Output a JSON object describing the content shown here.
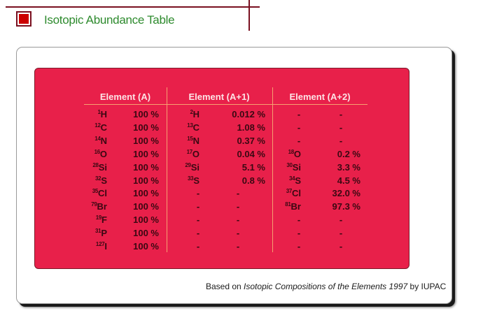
{
  "header": {
    "title": "Isotopic Abundance Table",
    "icon": "red-square-icon",
    "accent_color": "#cc0000",
    "title_color": "#2e8b2e"
  },
  "table": {
    "background_color": "#e8204a",
    "groups": [
      {
        "label": "Element (A)"
      },
      {
        "label": "Element (A+1)"
      },
      {
        "label": "Element (A+2)"
      }
    ],
    "rows": [
      {
        "a_mass": "1",
        "a_sym": "H",
        "a_val": "100 %",
        "a1_mass": "2",
        "a1_sym": "H",
        "a1_val": "0.012 %",
        "a2_mass": "",
        "a2_sym": "-",
        "a2_val": "-"
      },
      {
        "a_mass": "12",
        "a_sym": "C",
        "a_val": "100 %",
        "a1_mass": "13",
        "a1_sym": "C",
        "a1_val": "1.08 %",
        "a2_mass": "",
        "a2_sym": "-",
        "a2_val": "-"
      },
      {
        "a_mass": "14",
        "a_sym": "N",
        "a_val": "100 %",
        "a1_mass": "15",
        "a1_sym": "N",
        "a1_val": "0.37 %",
        "a2_mass": "",
        "a2_sym": "-",
        "a2_val": "-"
      },
      {
        "a_mass": "16",
        "a_sym": "O",
        "a_val": "100 %",
        "a1_mass": "17",
        "a1_sym": "O",
        "a1_val": "0.04 %",
        "a2_mass": "18",
        "a2_sym": "O",
        "a2_val": "0.2 %"
      },
      {
        "a_mass": "28",
        "a_sym": "Si",
        "a_val": "100 %",
        "a1_mass": "29",
        "a1_sym": "Si",
        "a1_val": "5.1 %",
        "a2_mass": "30",
        "a2_sym": "Si",
        "a2_val": "3.3 %"
      },
      {
        "a_mass": "32",
        "a_sym": "S",
        "a_val": "100 %",
        "a1_mass": "33",
        "a1_sym": "S",
        "a1_val": "0.8 %",
        "a2_mass": "34",
        "a2_sym": "S",
        "a2_val": "4.5 %"
      },
      {
        "a_mass": "35",
        "a_sym": "Cl",
        "a_val": "100 %",
        "a1_mass": "",
        "a1_sym": "-",
        "a1_val": "-",
        "a2_mass": "37",
        "a2_sym": "Cl",
        "a2_val": "32.0 %"
      },
      {
        "a_mass": "79",
        "a_sym": "Br",
        "a_val": "100 %",
        "a1_mass": "",
        "a1_sym": "-",
        "a1_val": "-",
        "a2_mass": "81",
        "a2_sym": "Br",
        "a2_val": "97.3 %"
      },
      {
        "a_mass": "19",
        "a_sym": "F",
        "a_val": "100 %",
        "a1_mass": "",
        "a1_sym": "-",
        "a1_val": "-",
        "a2_mass": "",
        "a2_sym": "-",
        "a2_val": "-"
      },
      {
        "a_mass": "31",
        "a_sym": "P",
        "a_val": "100 %",
        "a1_mass": "",
        "a1_sym": "-",
        "a1_val": "-",
        "a2_mass": "",
        "a2_sym": "-",
        "a2_val": "-"
      },
      {
        "a_mass": "127",
        "a_sym": "I",
        "a_val": "100 %",
        "a1_mass": "",
        "a1_sym": "-",
        "a1_val": "-",
        "a2_mass": "",
        "a2_sym": "-",
        "a2_val": "-"
      }
    ]
  },
  "footer": {
    "prefix": "Based on ",
    "source_title": "Isotopic Compositions of the Elements 1997",
    "suffix": " by IUPAC"
  }
}
